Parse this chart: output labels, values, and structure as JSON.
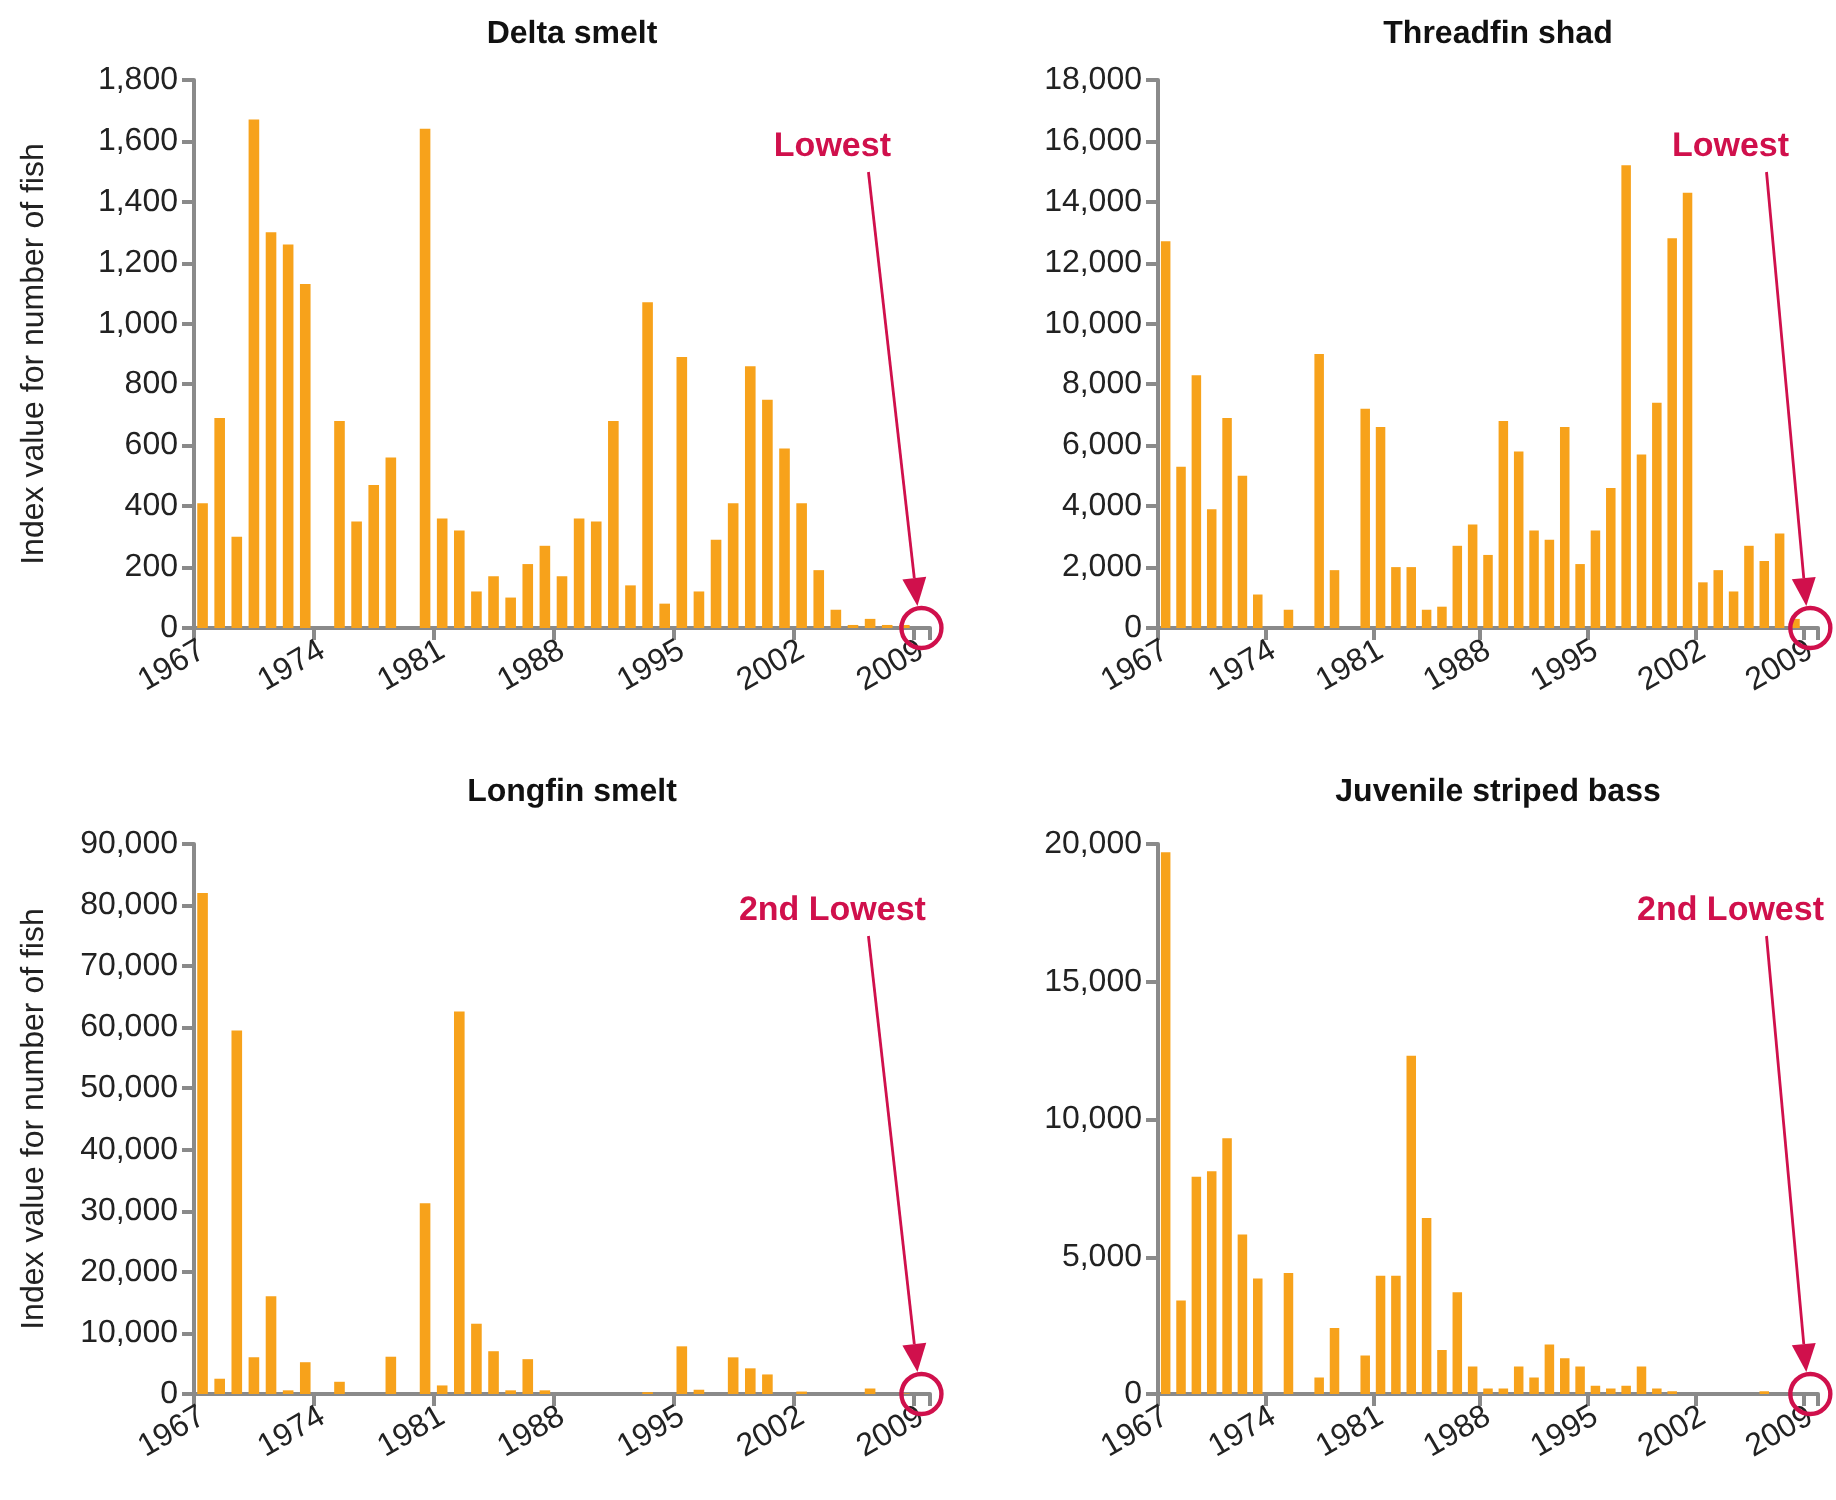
{
  "chart_data": [
    {
      "type": "bar",
      "title": "Delta smelt",
      "ylabel": "Index value for number of fish",
      "color": "#f7a21b",
      "categories": [
        "1967",
        null,
        null,
        null,
        null,
        null,
        null,
        "1974",
        null,
        null,
        null,
        null,
        null,
        null,
        "1981",
        null,
        null,
        null,
        null,
        null,
        null,
        "1988",
        null,
        null,
        null,
        null,
        null,
        null,
        "1995",
        null,
        null,
        null,
        null,
        null,
        null,
        "2002",
        null,
        null,
        null,
        null,
        null,
        null,
        "2009"
      ],
      "values": [
        410,
        690,
        300,
        1670,
        1300,
        1260,
        1130,
        null,
        680,
        350,
        470,
        560,
        null,
        1640,
        360,
        320,
        120,
        170,
        100,
        210,
        270,
        170,
        360,
        350,
        680,
        140,
        1070,
        80,
        890,
        120,
        290,
        410,
        860,
        750,
        590,
        410,
        190,
        60,
        10,
        30,
        10,
        10,
        null
      ],
      "ylim": [
        0,
        1800
      ],
      "yticks": [
        0,
        200,
        400,
        600,
        800,
        {
          "value": 1000,
          "label": "1,000"
        },
        {
          "value": 1200,
          "label": "1,200"
        },
        {
          "value": 1400,
          "label": "1,400"
        },
        {
          "value": 1600,
          "label": "1,600"
        },
        {
          "value": 1800,
          "label": "1,800"
        }
      ],
      "annotations": [
        "Lowest"
      ]
    },
    {
      "type": "bar",
      "title": "Threadfin shad",
      "color": "#f7a21b",
      "categories": [
        "1967",
        null,
        null,
        null,
        null,
        null,
        null,
        "1974",
        null,
        null,
        null,
        null,
        null,
        null,
        "1981",
        null,
        null,
        null,
        null,
        null,
        null,
        "1988",
        null,
        null,
        null,
        null,
        null,
        null,
        "1995",
        null,
        null,
        null,
        null,
        null,
        null,
        "2002",
        null,
        null,
        null,
        null,
        null,
        null,
        "2009"
      ],
      "values": [
        12700,
        5300,
        8300,
        3900,
        6900,
        5000,
        1100,
        null,
        600,
        null,
        9000,
        1900,
        null,
        7200,
        6600,
        2000,
        2000,
        600,
        700,
        2700,
        3400,
        2400,
        6800,
        5800,
        3200,
        2900,
        6600,
        2100,
        3200,
        4600,
        15200,
        5700,
        7400,
        12800,
        14300,
        1500,
        1900,
        1200,
        2700,
        2200,
        3100,
        300,
        null
      ],
      "ylim": [
        0,
        18000
      ],
      "yticks": [
        0,
        {
          "value": 2000,
          "label": "2,000"
        },
        {
          "value": 4000,
          "label": "4,000"
        },
        {
          "value": 6000,
          "label": "6,000"
        },
        {
          "value": 8000,
          "label": "8,000"
        },
        {
          "value": 10000,
          "label": "10,000"
        },
        {
          "value": 12000,
          "label": "12,000"
        },
        {
          "value": 14000,
          "label": "14,000"
        },
        {
          "value": 16000,
          "label": "16,000"
        },
        {
          "value": 18000,
          "label": "18,000"
        }
      ],
      "annotations": [
        "Lowest"
      ]
    },
    {
      "type": "bar",
      "title": "Longfin smelt",
      "ylabel": "Index value for number of fish",
      "color": "#f7a21b",
      "categories": [
        "1967",
        null,
        null,
        null,
        null,
        null,
        null,
        "1974",
        null,
        null,
        null,
        null,
        null,
        null,
        "1981",
        null,
        null,
        null,
        null,
        null,
        null,
        "1988",
        null,
        null,
        null,
        null,
        null,
        null,
        "1995",
        null,
        null,
        null,
        null,
        null,
        null,
        "2002",
        null,
        null,
        null,
        null,
        null,
        null,
        "2009"
      ],
      "values": [
        82000,
        2500,
        59500,
        6000,
        16000,
        600,
        5200,
        null,
        2000,
        0,
        0,
        6100,
        null,
        31200,
        1400,
        62600,
        11500,
        7000,
        600,
        5700,
        600,
        0,
        0,
        0,
        0,
        0,
        300,
        0,
        7800,
        700,
        0,
        6000,
        4200,
        3200,
        0,
        400,
        0,
        0,
        0,
        900,
        0,
        100,
        null
      ],
      "ylim": [
        0,
        90000
      ],
      "yticks": [
        0,
        {
          "value": 10000,
          "label": "10,000"
        },
        {
          "value": 20000,
          "label": "20,000"
        },
        {
          "value": 30000,
          "label": "30,000"
        },
        {
          "value": 40000,
          "label": "40,000"
        },
        {
          "value": 50000,
          "label": "50,000"
        },
        {
          "value": 60000,
          "label": "60,000"
        },
        {
          "value": 70000,
          "label": "70,000"
        },
        {
          "value": 80000,
          "label": "80,000"
        },
        {
          "value": 90000,
          "label": "90,000"
        }
      ],
      "annotations": [
        "2nd Lowest"
      ]
    },
    {
      "type": "bar",
      "title": "Juvenile striped bass",
      "color": "#f7a21b",
      "categories": [
        "1967",
        null,
        null,
        null,
        null,
        null,
        null,
        "1974",
        null,
        null,
        null,
        null,
        null,
        null,
        "1981",
        null,
        null,
        null,
        null,
        null,
        null,
        "1988",
        null,
        null,
        null,
        null,
        null,
        null,
        "1995",
        null,
        null,
        null,
        null,
        null,
        null,
        "2002",
        null,
        null,
        null,
        null,
        null,
        null,
        "2009"
      ],
      "values": [
        19700,
        3400,
        7900,
        8100,
        9300,
        5800,
        4200,
        null,
        4400,
        null,
        600,
        2400,
        null,
        1400,
        4300,
        4300,
        12300,
        6400,
        1600,
        3700,
        1000,
        200,
        200,
        1000,
        600,
        1800,
        1300,
        1000,
        300,
        200,
        300,
        1000,
        200,
        100,
        0,
        0,
        0,
        0,
        0,
        100,
        0,
        0,
        null
      ],
      "ylim": [
        0,
        20000
      ],
      "yticks": [
        0,
        {
          "value": 5000,
          "label": "5,000"
        },
        {
          "value": 10000,
          "label": "10,000"
        },
        {
          "value": 15000,
          "label": "15,000"
        },
        {
          "value": 20000,
          "label": "20,000"
        }
      ],
      "annotations": [
        "2nd Lowest"
      ]
    }
  ]
}
